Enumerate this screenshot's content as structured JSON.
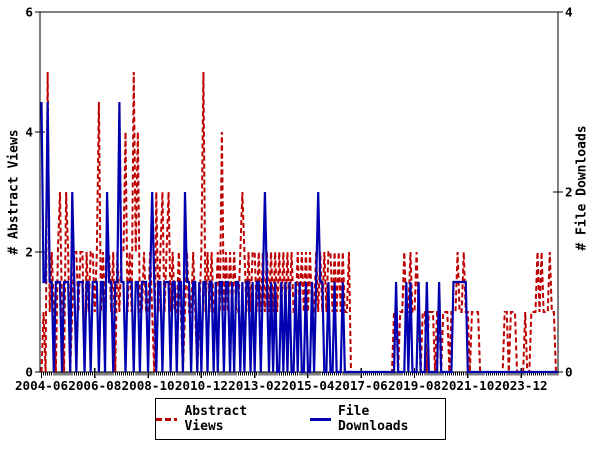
{
  "chart_data": {
    "type": "line",
    "title": "",
    "x_start": "2004-06",
    "x_end": "2025-06",
    "months_total": 253,
    "x_ticks": [
      {
        "m": 0,
        "label": "2004-06"
      },
      {
        "m": 26,
        "label": "2006-08"
      },
      {
        "m": 52,
        "label": "2008-10"
      },
      {
        "m": 78,
        "label": "2010-12"
      },
      {
        "m": 104,
        "label": "2013-02"
      },
      {
        "m": 130,
        "label": "2015-04"
      },
      {
        "m": 156,
        "label": "2017-06"
      },
      {
        "m": 182,
        "label": "2019-08"
      },
      {
        "m": 208,
        "label": "2021-10"
      },
      {
        "m": 234,
        "label": "2023-12"
      }
    ],
    "left_axis": {
      "label": "# Abstract Views",
      "range": [
        0,
        6
      ],
      "ticks": [
        0,
        2,
        4,
        6
      ]
    },
    "right_axis": {
      "label": "# File Downloads",
      "range": [
        0,
        4
      ],
      "ticks": [
        0,
        2,
        4
      ]
    },
    "grid": false,
    "legend_position": "bottom-center",
    "series": [
      {
        "name": "Abstract Views",
        "axis": "left",
        "color": "#bf0000",
        "style": "dashed",
        "values": [
          0,
          1,
          0,
          5,
          1,
          2,
          1,
          0,
          2,
          3,
          1,
          0,
          3,
          2,
          0,
          1,
          2,
          2,
          1,
          2,
          2,
          0,
          2,
          1,
          2,
          2,
          1,
          2,
          4.5,
          1,
          2,
          1,
          2,
          2,
          1,
          2,
          0,
          2,
          1,
          2,
          2,
          4,
          1,
          2,
          1,
          5,
          2,
          4,
          1,
          1,
          2,
          1,
          1,
          2,
          1,
          0,
          3,
          1,
          2,
          3,
          1,
          2,
          3,
          1,
          2,
          1,
          1,
          2,
          1,
          0,
          1,
          2,
          1,
          1,
          2,
          1,
          0,
          1,
          2,
          5,
          1,
          2,
          1,
          2,
          1,
          1,
          2,
          1,
          4,
          1,
          2,
          1,
          2,
          1,
          2,
          1,
          1,
          2,
          3,
          2,
          1,
          2,
          1,
          2,
          2,
          1,
          2,
          1,
          2,
          1,
          2,
          1,
          2,
          1,
          2,
          1,
          2,
          1,
          2,
          1,
          2,
          1,
          2,
          1,
          1,
          2,
          1,
          2,
          1,
          2,
          1,
          2,
          1,
          1,
          2,
          1,
          2,
          1,
          2,
          1,
          2,
          2,
          1,
          2,
          1,
          2,
          1,
          2,
          1,
          1,
          2,
          0,
          0,
          0,
          0,
          0,
          0,
          0,
          0,
          0,
          0,
          0,
          0,
          0,
          0,
          0,
          0,
          0,
          0,
          0,
          0,
          0,
          1,
          1,
          0,
          1,
          1,
          2,
          1,
          1,
          2,
          1,
          1,
          2,
          1,
          0,
          1,
          1,
          0,
          1,
          1,
          1,
          0,
          1,
          1,
          0,
          1,
          1,
          1,
          0,
          1,
          1,
          1,
          2,
          1,
          1,
          2,
          1,
          1,
          0,
          1,
          1,
          1,
          1,
          0,
          0,
          0,
          0,
          0,
          0,
          0,
          0,
          0,
          0,
          0,
          0,
          1,
          1,
          0,
          1,
          1,
          1,
          0,
          0,
          0,
          0,
          1,
          0,
          0,
          1,
          1,
          1,
          2,
          1,
          2,
          1,
          1,
          1,
          2,
          1,
          1,
          0,
          0
        ]
      },
      {
        "name": "File Downloads",
        "axis": "right",
        "color": "#0000b0",
        "style": "solid",
        "values": [
          3,
          1,
          1,
          3,
          1,
          1,
          0,
          1,
          1,
          1,
          0,
          1,
          1,
          1,
          0,
          2,
          1,
          0,
          1,
          1,
          1,
          0,
          1,
          1,
          0,
          1,
          1,
          1,
          0,
          1,
          1,
          0,
          2,
          1,
          1,
          0,
          1,
          1,
          3,
          1,
          1,
          0,
          1,
          1,
          1,
          0,
          1,
          1,
          0,
          1,
          1,
          1,
          0,
          1,
          2,
          1,
          0,
          1,
          1,
          0,
          1,
          1,
          1,
          0,
          1,
          1,
          0,
          1,
          1,
          0,
          2,
          1,
          1,
          0,
          1,
          1,
          0,
          1,
          0,
          1,
          1,
          0,
          1,
          1,
          0,
          1,
          0,
          1,
          1,
          0,
          1,
          1,
          0,
          1,
          0,
          1,
          1,
          0,
          1,
          0,
          1,
          1,
          0,
          1,
          0,
          1,
          1,
          0,
          1,
          2,
          1,
          0,
          1,
          0,
          1,
          0,
          0,
          1,
          0,
          1,
          0,
          1,
          0,
          0,
          1,
          0,
          1,
          0,
          0,
          1,
          0,
          0,
          1,
          0,
          1,
          2,
          1,
          1,
          0,
          0,
          1,
          0,
          0,
          1,
          0,
          0,
          0,
          1,
          0,
          0,
          0,
          0,
          0,
          0,
          0,
          0,
          0,
          0,
          0,
          0,
          0,
          0,
          0,
          0,
          0,
          0,
          0,
          0,
          0,
          0,
          0,
          0,
          0,
          1,
          0,
          0,
          0,
          0,
          1,
          0,
          1,
          0,
          0,
          0,
          1,
          0,
          0,
          0,
          1,
          0,
          0,
          0,
          0,
          0,
          1,
          0,
          0,
          0,
          0,
          0,
          0,
          1,
          1,
          1,
          1,
          1,
          1,
          1,
          0,
          0,
          0,
          0,
          0,
          0,
          0,
          0,
          0,
          0,
          0,
          0,
          0,
          0,
          0,
          0,
          0,
          0,
          0,
          0,
          0,
          0,
          0,
          0,
          0,
          0,
          0,
          0,
          0,
          0,
          0,
          0,
          0,
          0,
          0,
          0,
          0,
          0,
          0,
          0,
          0,
          0,
          0,
          0,
          0
        ]
      }
    ]
  },
  "legend": {
    "items": [
      {
        "label": "Abstract Views"
      },
      {
        "label": "File Downloads"
      }
    ]
  }
}
